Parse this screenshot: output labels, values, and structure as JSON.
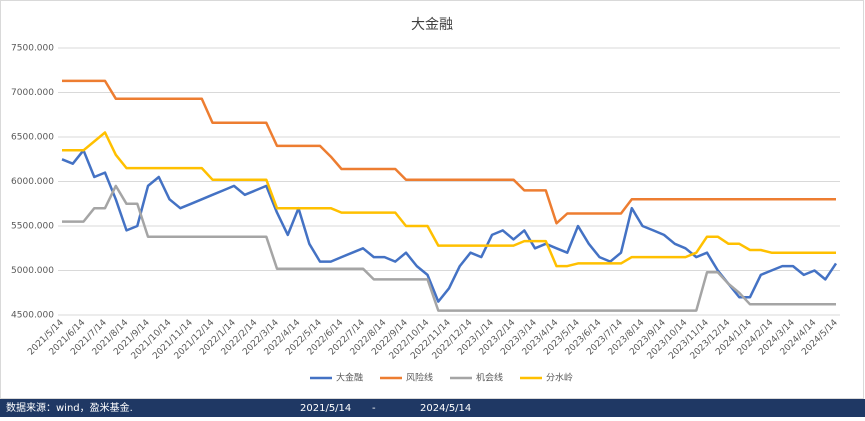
{
  "chart_data": {
    "type": "line",
    "title": "大金融",
    "categories": [
      "2021/5/14",
      null,
      "2021/6/14",
      null,
      "2021/7/14",
      null,
      "2021/8/14",
      null,
      "2021/9/14",
      null,
      "2021/10/14",
      null,
      "2021/11/14",
      null,
      "2021/12/14",
      null,
      "2022/1/14",
      null,
      "2022/2/14",
      null,
      "2022/3/14",
      null,
      "2022/4/14",
      null,
      "2022/5/14",
      null,
      "2022/6/14",
      null,
      "2022/7/14",
      null,
      "2022/8/14",
      null,
      "2022/9/14",
      null,
      "2022/10/14",
      null,
      "2022/11/14",
      null,
      "2022/12/14",
      null,
      "2023/1/14",
      null,
      "2023/2/14",
      null,
      "2023/3/14",
      null,
      "2023/4/14",
      null,
      "2023/5/14",
      null,
      "2023/6/14",
      null,
      "2023/7/14",
      null,
      "2023/8/14",
      null,
      "2023/9/14",
      null,
      "2023/10/14",
      null,
      "2023/11/14",
      null,
      "2023/12/14",
      null,
      "2024/1/14",
      null,
      "2024/2/14",
      null,
      "2024/3/14",
      null,
      "2024/4/14",
      null,
      "2024/5/14"
    ],
    "series": [
      {
        "name": "大金融",
        "color": "#4472c4",
        "values": [
          6250,
          6200,
          6350,
          6050,
          6100,
          5800,
          5450,
          5500,
          5950,
          6050,
          5800,
          5700,
          5750,
          5800,
          5850,
          5900,
          5950,
          5850,
          5900,
          5950,
          5650,
          5400,
          5700,
          5300,
          5100,
          5100,
          5150,
          5200,
          5250,
          5150,
          5150,
          5100,
          5200,
          5050,
          4950,
          4650,
          4800,
          5050,
          5200,
          5150,
          5400,
          5450,
          5350,
          5450,
          5250,
          5300,
          5250,
          5200,
          5500,
          5300,
          5150,
          5100,
          5200,
          5700,
          5500,
          5450,
          5400,
          5300,
          5250,
          5150,
          5200,
          5000,
          4850,
          4700,
          4700,
          4950,
          5000,
          5050,
          5050,
          4950,
          5000,
          4900,
          5080
        ]
      },
      {
        "name": "风险线",
        "color": "#ed7d31",
        "values": [
          7130,
          7130,
          7130,
          7130,
          7130,
          6930,
          6930,
          6930,
          6930,
          6930,
          6930,
          6930,
          6930,
          6930,
          6660,
          6660,
          6660,
          6660,
          6660,
          6660,
          6400,
          6400,
          6400,
          6400,
          6400,
          6280,
          6140,
          6140,
          6140,
          6140,
          6140,
          6140,
          6020,
          6020,
          6020,
          6020,
          6020,
          6020,
          6020,
          6020,
          6020,
          6020,
          6020,
          5900,
          5900,
          5900,
          5530,
          5640,
          5640,
          5640,
          5640,
          5640,
          5640,
          5800,
          5800,
          5800,
          5800,
          5800,
          5800,
          5800,
          5800,
          5800,
          5800,
          5800,
          5800,
          5800,
          5800,
          5800,
          5800,
          5800,
          5800,
          5800,
          5800
        ]
      },
      {
        "name": "机会线",
        "color": "#a5a5a5",
        "values": [
          5550,
          5550,
          5550,
          5700,
          5700,
          5950,
          5750,
          5750,
          5380,
          5380,
          5380,
          5380,
          5380,
          5380,
          5380,
          5380,
          5380,
          5380,
          5380,
          5380,
          5020,
          5020,
          5020,
          5020,
          5020,
          5020,
          5020,
          5020,
          5020,
          4900,
          4900,
          4900,
          4900,
          4900,
          4900,
          4550,
          4550,
          4550,
          4550,
          4550,
          4550,
          4550,
          4550,
          4550,
          4550,
          4550,
          4550,
          4550,
          4550,
          4550,
          4550,
          4550,
          4550,
          4550,
          4550,
          4550,
          4550,
          4550,
          4550,
          4550,
          4980,
          4980,
          4850,
          4750,
          4620,
          4620,
          4620,
          4620,
          4620,
          4620,
          4620,
          4620,
          4620
        ]
      },
      {
        "name": "分水岭",
        "color": "#ffc000",
        "values": [
          6350,
          6350,
          6350,
          6450,
          6550,
          6300,
          6150,
          6150,
          6150,
          6150,
          6150,
          6150,
          6150,
          6150,
          6020,
          6020,
          6020,
          6020,
          6020,
          6020,
          5700,
          5700,
          5700,
          5700,
          5700,
          5700,
          5650,
          5650,
          5650,
          5650,
          5650,
          5650,
          5500,
          5500,
          5500,
          5280,
          5280,
          5280,
          5280,
          5280,
          5280,
          5280,
          5280,
          5330,
          5330,
          5330,
          5050,
          5050,
          5080,
          5080,
          5080,
          5080,
          5080,
          5150,
          5150,
          5150,
          5150,
          5150,
          5150,
          5200,
          5380,
          5380,
          5300,
          5300,
          5230,
          5230,
          5200,
          5200,
          5200,
          5200,
          5200,
          5200,
          5200
        ]
      }
    ],
    "ylim": [
      4500,
      7500
    ],
    "yticks": [
      {
        "value": 4500,
        "label": "4500.000"
      },
      {
        "value": 5000,
        "label": "5000.000"
      },
      {
        "value": 5500,
        "label": "5500.000"
      },
      {
        "value": 6000,
        "label": "6000.000"
      },
      {
        "value": 6500,
        "label": "6500.000"
      },
      {
        "value": 7000,
        "label": "7000.000"
      },
      {
        "value": 7500,
        "label": "7500.000"
      }
    ],
    "grid": true
  },
  "footer": {
    "source": "数据来源：wind，盈米基金.",
    "start": "2021/5/14",
    "sep": "-",
    "end": "2024/5/14"
  }
}
